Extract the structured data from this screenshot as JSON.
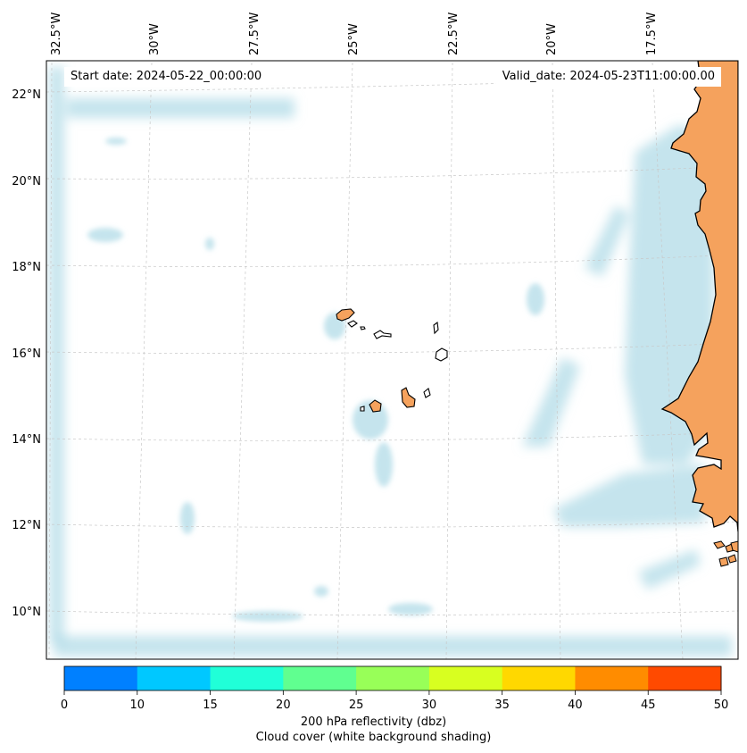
{
  "map": {
    "region": "Cape Verde and West African coast",
    "longitude_labels": [
      "32.5°W",
      "30°W",
      "27.5°W",
      "25°W",
      "22.5°W",
      "20°W",
      "17.5°W"
    ],
    "latitude_labels": [
      "22°N",
      "20°N",
      "18°N",
      "16°N",
      "14°N",
      "12°N",
      "10°N"
    ],
    "start_date": "Start date: 2024-05-22_00:00:00",
    "valid_date": "Valid_date: 2024-05-23T11:00:00.00",
    "land_color": "#f5a25d",
    "cloud_color": "#add8e6",
    "coastline_color": "#000000"
  },
  "colorbar": {
    "ticks": [
      "0",
      "10",
      "15",
      "20",
      "25",
      "30",
      "35",
      "40",
      "45",
      "50"
    ],
    "colors": [
      "#0080ff",
      "#00c8ff",
      "#20ffd8",
      "#60ff90",
      "#98ff58",
      "#d8ff20",
      "#ffd800",
      "#ff8c00",
      "#ff4a00"
    ],
    "label": "200 hPa reflectivity (dbz)",
    "sublabel": "Cloud cover (white background shading)"
  }
}
